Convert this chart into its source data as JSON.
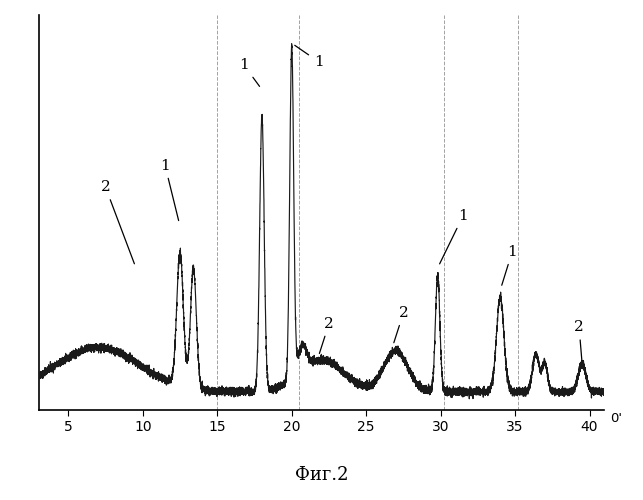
{
  "title": "Фиг.2",
  "xlabel_arrow": "0'",
  "xlim": [
    3,
    41
  ],
  "ylim": [
    -0.02,
    1.08
  ],
  "x_ticks": [
    5,
    10,
    15,
    20,
    25,
    30,
    35,
    40
  ],
  "background_color": "#ffffff",
  "line_color": "#1a1a1a",
  "dashed_lines": [
    15.0,
    20.5,
    30.2,
    35.2
  ],
  "annotation_params": [
    {
      "text": "1",
      "tpos": [
        11.5,
        0.66
      ],
      "apos": [
        12.45,
        0.5
      ]
    },
    {
      "text": "1",
      "tpos": [
        16.8,
        0.94
      ],
      "apos": [
        17.95,
        0.875
      ]
    },
    {
      "text": "1",
      "tpos": [
        21.8,
        0.95
      ],
      "apos": [
        20.05,
        1.0
      ]
    },
    {
      "text": "1",
      "tpos": [
        31.5,
        0.52
      ],
      "apos": [
        29.85,
        0.38
      ]
    },
    {
      "text": "1",
      "tpos": [
        34.8,
        0.42
      ],
      "apos": [
        34.05,
        0.32
      ]
    },
    {
      "text": "2",
      "tpos": [
        7.5,
        0.6
      ],
      "apos": [
        9.5,
        0.38
      ]
    },
    {
      "text": "2",
      "tpos": [
        22.5,
        0.22
      ],
      "apos": [
        21.8,
        0.13
      ]
    },
    {
      "text": "2",
      "tpos": [
        27.5,
        0.25
      ],
      "apos": [
        26.8,
        0.16
      ]
    },
    {
      "text": "2",
      "tpos": [
        39.3,
        0.21
      ],
      "apos": [
        39.5,
        0.11
      ]
    }
  ]
}
